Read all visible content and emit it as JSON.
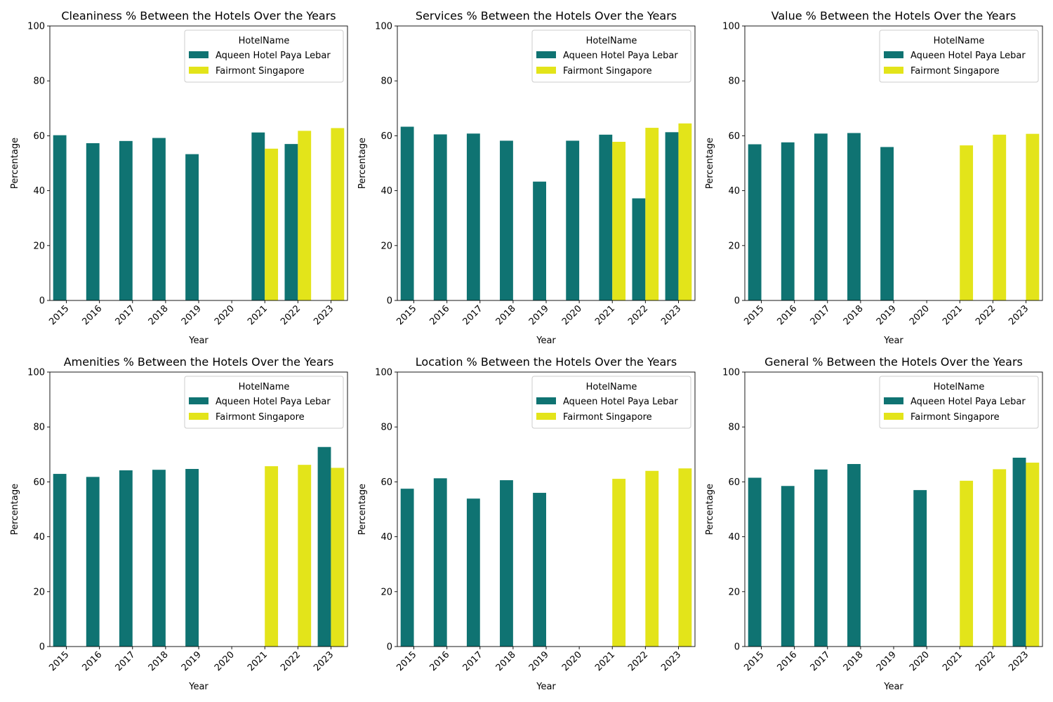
{
  "legend_title": "HotelName",
  "colors": {
    "aqueen": "#0f7372",
    "fairmont": "#e3e41a"
  },
  "chart_data": [
    {
      "type": "bar",
      "title": "Cleaniness % Between the Hotels Over the Years",
      "xlabel": "Year",
      "ylabel": "Percentage",
      "ylim": [
        0,
        100
      ],
      "yticks": [
        0,
        20,
        40,
        60,
        80,
        100
      ],
      "legend": "top-right",
      "categories": [
        "2015",
        "2016",
        "2017",
        "2018",
        "2019",
        "2020",
        "2021",
        "2022",
        "2023"
      ],
      "series": [
        {
          "name": "Aqueen Hotel Paya Lebar",
          "values": [
            60.2,
            57.3,
            58.1,
            59.2,
            53.3,
            null,
            61.2,
            57.0,
            null
          ]
        },
        {
          "name": "Fairmont Singapore",
          "values": [
            null,
            null,
            null,
            null,
            null,
            null,
            55.3,
            61.8,
            62.8
          ]
        }
      ]
    },
    {
      "type": "bar",
      "title": "Services % Between the Hotels Over the Years",
      "xlabel": "Year",
      "ylabel": "Percentage",
      "ylim": [
        0,
        100
      ],
      "yticks": [
        0,
        20,
        40,
        60,
        80,
        100
      ],
      "legend": "top-right",
      "categories": [
        "2015",
        "2016",
        "2017",
        "2018",
        "2019",
        "2020",
        "2021",
        "2022",
        "2023"
      ],
      "series": [
        {
          "name": "Aqueen Hotel Paya Lebar",
          "values": [
            63.3,
            60.5,
            60.8,
            58.2,
            43.3,
            58.2,
            60.4,
            37.2,
            61.3
          ]
        },
        {
          "name": "Fairmont Singapore",
          "values": [
            null,
            null,
            null,
            null,
            null,
            null,
            57.8,
            62.9,
            64.5
          ]
        }
      ]
    },
    {
      "type": "bar",
      "title": "Value % Between the Hotels Over the Years",
      "xlabel": "Year",
      "ylabel": "Percentage",
      "ylim": [
        0,
        100
      ],
      "yticks": [
        0,
        20,
        40,
        60,
        80,
        100
      ],
      "legend": "top-right",
      "categories": [
        "2015",
        "2016",
        "2017",
        "2018",
        "2019",
        "2020",
        "2021",
        "2022",
        "2023"
      ],
      "series": [
        {
          "name": "Aqueen Hotel Paya Lebar",
          "values": [
            56.9,
            57.6,
            60.8,
            61.0,
            55.9,
            null,
            null,
            null,
            null
          ]
        },
        {
          "name": "Fairmont Singapore",
          "values": [
            null,
            null,
            null,
            null,
            null,
            null,
            56.5,
            60.4,
            60.7
          ]
        }
      ]
    },
    {
      "type": "bar",
      "title": "Amenities % Between the Hotels Over the Years",
      "xlabel": "Year",
      "ylabel": "Percentage",
      "ylim": [
        0,
        100
      ],
      "yticks": [
        0,
        20,
        40,
        60,
        80,
        100
      ],
      "legend": "top-right",
      "categories": [
        "2015",
        "2016",
        "2017",
        "2018",
        "2019",
        "2020",
        "2021",
        "2022",
        "2023"
      ],
      "series": [
        {
          "name": "Aqueen Hotel Paya Lebar",
          "values": [
            62.9,
            61.8,
            64.2,
            64.4,
            64.7,
            null,
            null,
            null,
            72.7
          ]
        },
        {
          "name": "Fairmont Singapore",
          "values": [
            null,
            null,
            null,
            null,
            null,
            null,
            65.7,
            66.2,
            65.1
          ]
        }
      ]
    },
    {
      "type": "bar",
      "title": "Location % Between the Hotels Over the Years",
      "xlabel": "Year",
      "ylabel": "Percentage",
      "ylim": [
        0,
        100
      ],
      "yticks": [
        0,
        20,
        40,
        60,
        80,
        100
      ],
      "legend": "top-right",
      "categories": [
        "2015",
        "2016",
        "2017",
        "2018",
        "2019",
        "2020",
        "2021",
        "2022",
        "2023"
      ],
      "series": [
        {
          "name": "Aqueen Hotel Paya Lebar",
          "values": [
            57.5,
            61.3,
            53.9,
            60.6,
            56.0,
            null,
            null,
            null,
            null
          ]
        },
        {
          "name": "Fairmont Singapore",
          "values": [
            null,
            null,
            null,
            null,
            null,
            null,
            61.1,
            64.0,
            64.9
          ]
        }
      ]
    },
    {
      "type": "bar",
      "title": "General % Between the Hotels Over the Years",
      "xlabel": "Year",
      "ylabel": "Percentage",
      "ylim": [
        0,
        100
      ],
      "yticks": [
        0,
        20,
        40,
        60,
        80,
        100
      ],
      "legend": "top-right",
      "categories": [
        "2015",
        "2016",
        "2017",
        "2018",
        "2019",
        "2020",
        "2021",
        "2022",
        "2023"
      ],
      "series": [
        {
          "name": "Aqueen Hotel Paya Lebar",
          "values": [
            61.5,
            58.5,
            64.5,
            66.5,
            null,
            57.0,
            null,
            null,
            68.8
          ]
        },
        {
          "name": "Fairmont Singapore",
          "values": [
            null,
            null,
            null,
            null,
            null,
            null,
            60.4,
            64.6,
            67.0
          ]
        }
      ]
    }
  ]
}
